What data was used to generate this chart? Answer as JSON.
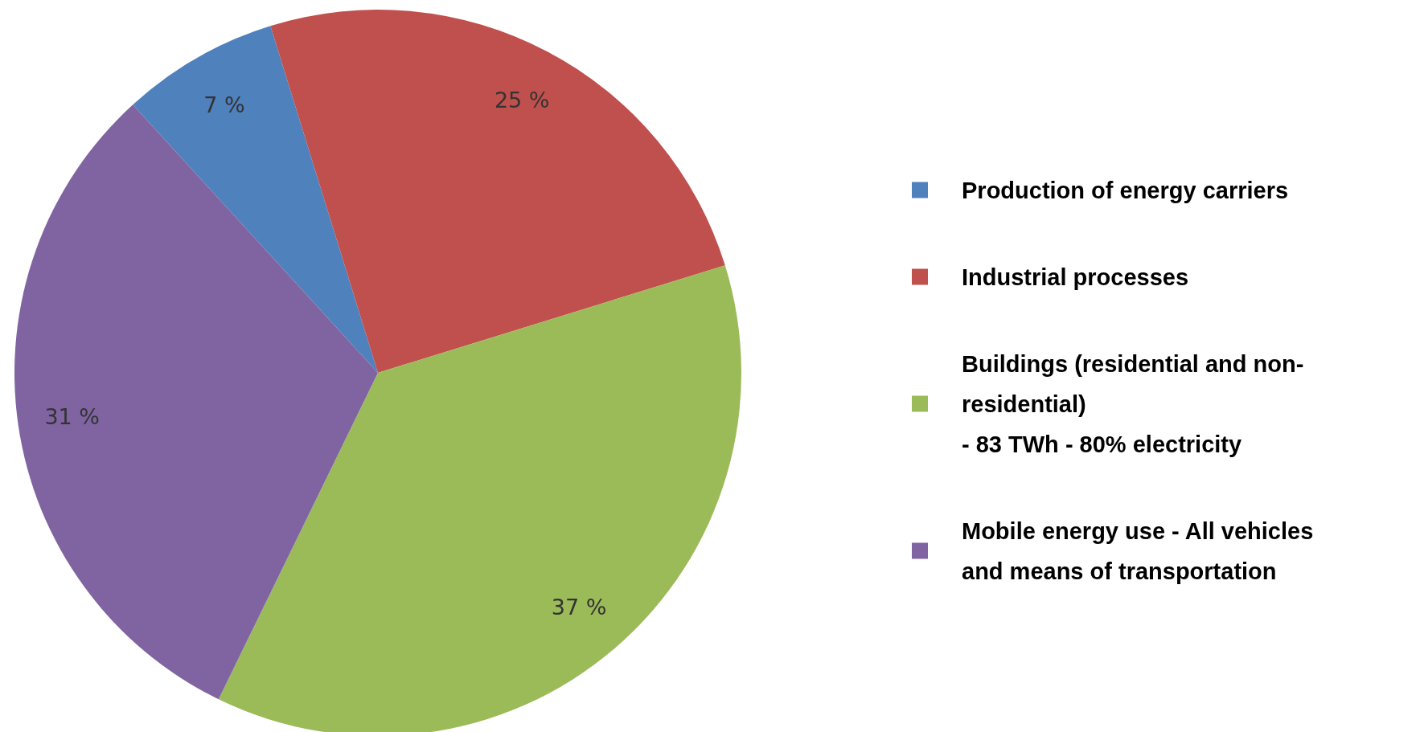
{
  "chart_data": {
    "type": "pie",
    "categories": [
      "Production of energy carriers",
      "Industrial processes",
      "Buildings (residential and non-\nresidential)\n- 83 TWh - 80% electricity",
      "Mobile energy use - All vehicles\nand means of transportation"
    ],
    "values": [
      7,
      25,
      37,
      31
    ],
    "colors": [
      "#4f81bd",
      "#c0504d",
      "#9bbb59",
      "#8064a2"
    ],
    "value_labels": [
      "7 %",
      "25 %",
      "37 %",
      "31 %"
    ],
    "legend": "right"
  }
}
